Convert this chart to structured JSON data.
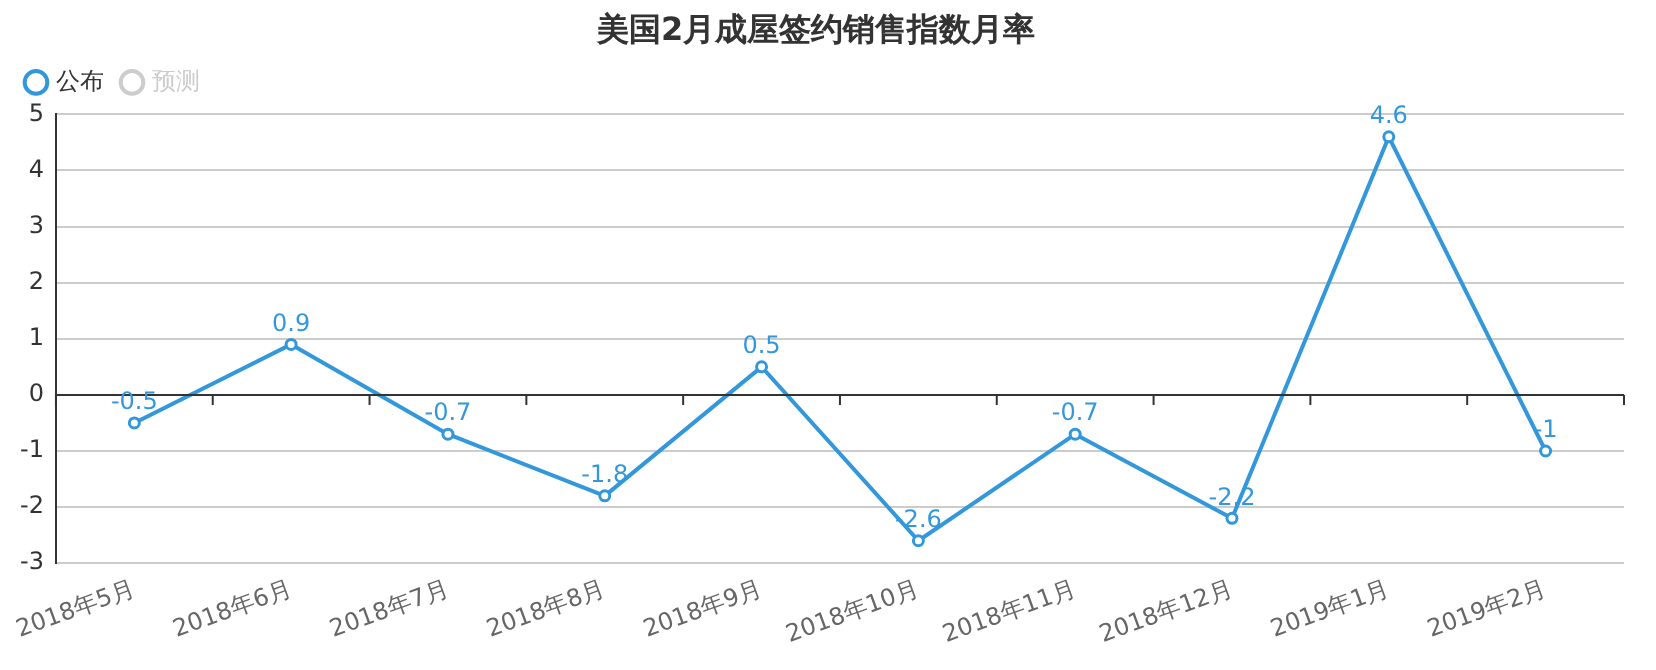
{
  "chart_data": {
    "type": "line",
    "title": "美国2月成屋签约销售指数月率",
    "categories": [
      "2018年5月",
      "2018年6月",
      "2018年7月",
      "2018年8月",
      "2018年9月",
      "2018年10月",
      "2018年11月",
      "2018年12月",
      "2019年1月",
      "2019年2月"
    ],
    "series": [
      {
        "name": "公布",
        "color": "#3398db",
        "values": [
          -0.5,
          0.9,
          -0.7,
          -1.8,
          0.5,
          -2.6,
          -0.7,
          -2.2,
          4.6,
          -1
        ]
      },
      {
        "name": "预测",
        "color": "#cccccc",
        "values": [
          null,
          null,
          null,
          null,
          null,
          null,
          null,
          null,
          null,
          null
        ]
      }
    ],
    "ylim": [
      -3,
      5
    ],
    "yticks": [
      -3,
      -2,
      -1,
      0,
      1,
      2,
      3,
      4,
      5
    ],
    "grid": "y",
    "legend": "top left",
    "marker": "circle",
    "line_style": "solid",
    "data_labels": true
  }
}
